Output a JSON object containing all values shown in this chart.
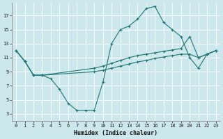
{
  "xlabel": "Humidex (Indice chaleur)",
  "xlim": [
    -0.5,
    23.5
  ],
  "ylim": [
    2.0,
    18.8
  ],
  "xticks": [
    0,
    1,
    2,
    3,
    4,
    5,
    6,
    7,
    8,
    9,
    10,
    11,
    12,
    13,
    14,
    15,
    16,
    17,
    18,
    19,
    20,
    21,
    22,
    23
  ],
  "yticks": [
    3,
    5,
    7,
    9,
    11,
    13,
    15,
    17
  ],
  "bg_color": "#cce8ec",
  "grid_color": "#b8dde2",
  "line_color": "#1f7575",
  "curve1_x": [
    0,
    1,
    2,
    3,
    4,
    5,
    6,
    7,
    8,
    9,
    10,
    11,
    12,
    13,
    14,
    15,
    16,
    17,
    18,
    19,
    20,
    21,
    22,
    23
  ],
  "curve1_y": [
    12.0,
    10.5,
    8.5,
    8.5,
    8.0,
    6.5,
    4.5,
    3.5,
    3.5,
    3.5,
    7.5,
    13.0,
    15.0,
    15.5,
    16.5,
    18.0,
    18.3,
    16.0,
    15.0,
    14.0,
    11.0,
    9.5,
    11.5,
    12.0
  ],
  "curve2_x": [
    0,
    1,
    2,
    3,
    9,
    10,
    11,
    12,
    13,
    14,
    15,
    16,
    17,
    18,
    19,
    20,
    21,
    22,
    23
  ],
  "curve2_y": [
    12.0,
    10.5,
    8.5,
    8.5,
    9.5,
    9.8,
    10.2,
    10.6,
    11.0,
    11.3,
    11.5,
    11.7,
    11.9,
    12.1,
    12.3,
    14.0,
    11.0,
    11.5,
    12.0
  ],
  "curve3_x": [
    0,
    1,
    2,
    3,
    9,
    10,
    11,
    12,
    13,
    14,
    15,
    16,
    17,
    18,
    19,
    20,
    21,
    22,
    23
  ],
  "curve3_y": [
    12.0,
    10.5,
    8.5,
    8.5,
    9.0,
    9.2,
    9.5,
    9.8,
    10.1,
    10.4,
    10.6,
    10.9,
    11.1,
    11.3,
    11.5,
    11.5,
    11.0,
    11.5,
    12.0
  ]
}
